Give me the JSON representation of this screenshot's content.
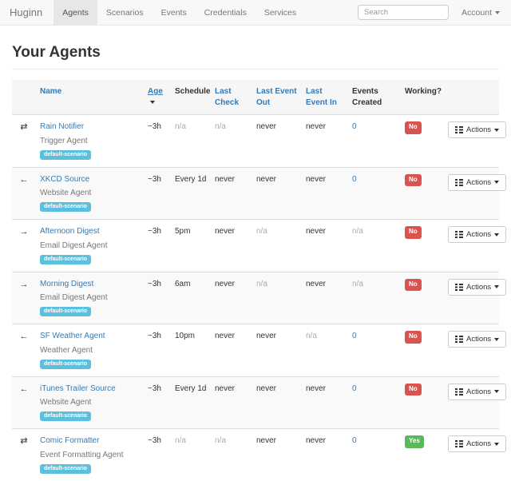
{
  "navbar": {
    "brand": "Huginn",
    "items": [
      {
        "label": "Agents",
        "active": true
      },
      {
        "label": "Scenarios",
        "active": false
      },
      {
        "label": "Events",
        "active": false
      },
      {
        "label": "Credentials",
        "active": false
      },
      {
        "label": "Services",
        "active": false
      }
    ],
    "search_placeholder": "Search",
    "account_label": "Account"
  },
  "page": {
    "title": "Your Agents"
  },
  "icons": {
    "transfer": "⇄",
    "arrow-left": "←",
    "arrow-right": "→"
  },
  "table": {
    "headers": [
      {
        "label": "Name",
        "link": true,
        "sorted": false
      },
      {
        "label": "Age",
        "link": true,
        "sorted": true
      },
      {
        "label": "Schedule",
        "link": false,
        "sorted": false
      },
      {
        "label": "Last Check",
        "link": true,
        "sorted": false
      },
      {
        "label": "Last Event Out",
        "link": true,
        "sorted": false
      },
      {
        "label": "Last Event In",
        "link": true,
        "sorted": false
      },
      {
        "label": "Events Created",
        "link": false,
        "sorted": false
      },
      {
        "label": "Working?",
        "link": false,
        "sorted": false
      }
    ],
    "actions_label": "Actions",
    "rows": [
      {
        "icon": "transfer",
        "name": "Rain Notifier",
        "type": "Trigger Agent",
        "scenario": "default-scenario",
        "cells": [
          {
            "text": "~3h"
          },
          {
            "text": "n/a",
            "muted": true
          },
          {
            "text": "n/a",
            "muted": true
          },
          {
            "text": "never"
          },
          {
            "text": "never"
          },
          {
            "text": "0",
            "link": true
          }
        ],
        "working": {
          "text": "No",
          "style": "danger"
        }
      },
      {
        "icon": "arrow-left",
        "name": "XKCD Source",
        "type": "Website Agent",
        "scenario": "default-scenario",
        "cells": [
          {
            "text": "~3h"
          },
          {
            "text": "Every 1d"
          },
          {
            "text": "never"
          },
          {
            "text": "never"
          },
          {
            "text": "never"
          },
          {
            "text": "0",
            "link": true
          }
        ],
        "working": {
          "text": "No",
          "style": "danger"
        }
      },
      {
        "icon": "arrow-right",
        "name": "Afternoon Digest",
        "type": "Email Digest Agent",
        "scenario": "default-scenario",
        "cells": [
          {
            "text": "~3h"
          },
          {
            "text": "5pm"
          },
          {
            "text": "never"
          },
          {
            "text": "n/a",
            "muted": true
          },
          {
            "text": "never"
          },
          {
            "text": "n/a",
            "muted": true
          }
        ],
        "working": {
          "text": "No",
          "style": "danger"
        }
      },
      {
        "icon": "arrow-right",
        "name": "Morning Digest",
        "type": "Email Digest Agent",
        "scenario": "default-scenario",
        "cells": [
          {
            "text": "~3h"
          },
          {
            "text": "6am"
          },
          {
            "text": "never"
          },
          {
            "text": "n/a",
            "muted": true
          },
          {
            "text": "never"
          },
          {
            "text": "n/a",
            "muted": true
          }
        ],
        "working": {
          "text": "No",
          "style": "danger"
        }
      },
      {
        "icon": "arrow-left",
        "name": "SF Weather Agent",
        "type": "Weather Agent",
        "scenario": "default-scenario",
        "cells": [
          {
            "text": "~3h"
          },
          {
            "text": "10pm"
          },
          {
            "text": "never"
          },
          {
            "text": "never"
          },
          {
            "text": "n/a",
            "muted": true
          },
          {
            "text": "0",
            "link": true
          }
        ],
        "working": {
          "text": "No",
          "style": "danger"
        }
      },
      {
        "icon": "arrow-left",
        "name": "iTunes Trailer Source",
        "type": "Website Agent",
        "scenario": "default-scenario",
        "cells": [
          {
            "text": "~3h"
          },
          {
            "text": "Every 1d"
          },
          {
            "text": "never"
          },
          {
            "text": "never"
          },
          {
            "text": "never"
          },
          {
            "text": "0",
            "link": true
          }
        ],
        "working": {
          "text": "No",
          "style": "danger"
        }
      },
      {
        "icon": "transfer",
        "name": "Comic Formatter",
        "type": "Event Formatting Agent",
        "scenario": "default-scenario",
        "cells": [
          {
            "text": "~3h"
          },
          {
            "text": "n/a",
            "muted": true
          },
          {
            "text": "n/a",
            "muted": true
          },
          {
            "text": "never"
          },
          {
            "text": "never"
          },
          {
            "text": "0",
            "link": true
          }
        ],
        "working": {
          "text": "Yes",
          "style": "success"
        }
      }
    ]
  },
  "colors": {
    "link_blue": "#337ab7",
    "scenario_badge": "#5bc0de",
    "working_no": "#d9534f",
    "working_yes": "#5cb85c",
    "navbar_bg": "#f8f8f8",
    "navbar_active_bg": "#e7e7e7",
    "stripe_bg": "#f9f9f9"
  }
}
